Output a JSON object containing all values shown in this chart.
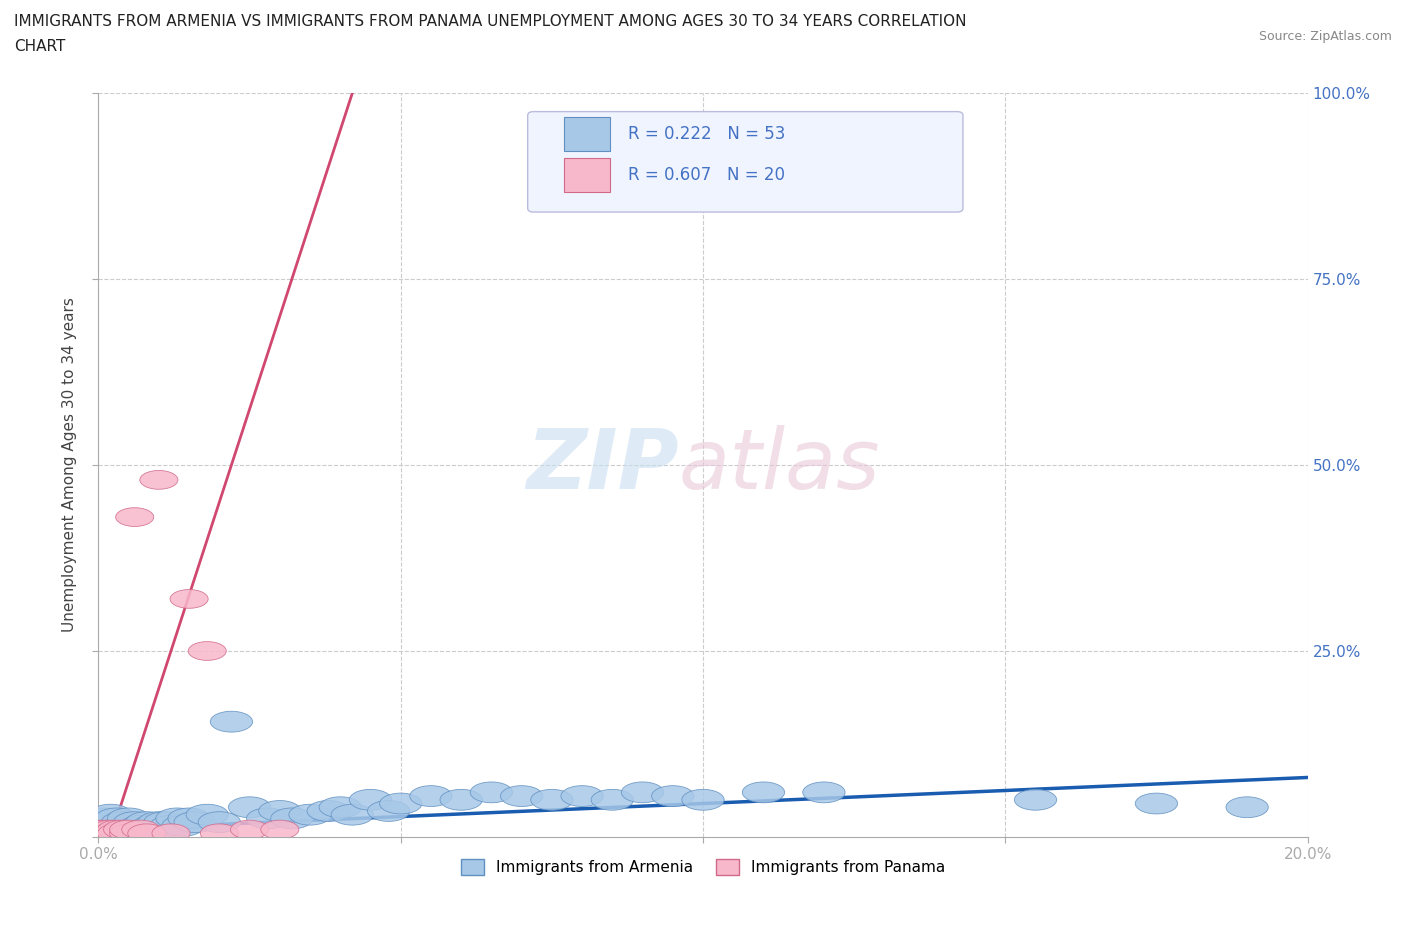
{
  "title_line1": "IMMIGRANTS FROM ARMENIA VS IMMIGRANTS FROM PANAMA UNEMPLOYMENT AMONG AGES 30 TO 34 YEARS CORRELATION",
  "title_line2": "CHART",
  "source": "Source: ZipAtlas.com",
  "ylabel": "Unemployment Among Ages 30 to 34 years",
  "xlim": [
    0.0,
    0.2
  ],
  "ylim": [
    0.0,
    1.0
  ],
  "armenia_color": "#a8c8e8",
  "armenia_edge_color": "#6090c0",
  "panama_color": "#f8b8cc",
  "panama_edge_color": "#d06888",
  "armenia_line_color": "#1a5cb0",
  "panama_line_color": "#d04870",
  "armenia_R": 0.222,
  "armenia_N": 53,
  "panama_R": 0.607,
  "panama_N": 20,
  "arm_x": [
    0.0,
    0.001,
    0.001,
    0.002,
    0.002,
    0.003,
    0.003,
    0.004,
    0.004,
    0.005,
    0.005,
    0.005,
    0.006,
    0.006,
    0.007,
    0.008,
    0.009,
    0.01,
    0.011,
    0.012,
    0.013,
    0.014,
    0.015,
    0.016,
    0.018,
    0.02,
    0.022,
    0.025,
    0.028,
    0.03,
    0.032,
    0.035,
    0.038,
    0.04,
    0.042,
    0.045,
    0.048,
    0.05,
    0.055,
    0.06,
    0.065,
    0.07,
    0.075,
    0.08,
    0.085,
    0.09,
    0.095,
    0.1,
    0.11,
    0.12,
    0.155,
    0.175,
    0.19
  ],
  "arm_y": [
    0.02,
    0.01,
    0.025,
    0.015,
    0.03,
    0.01,
    0.025,
    0.015,
    0.02,
    0.01,
    0.015,
    0.025,
    0.01,
    0.02,
    0.015,
    0.02,
    0.015,
    0.02,
    0.02,
    0.015,
    0.025,
    0.015,
    0.025,
    0.02,
    0.03,
    0.02,
    0.155,
    0.04,
    0.025,
    0.035,
    0.025,
    0.03,
    0.035,
    0.04,
    0.03,
    0.05,
    0.035,
    0.045,
    0.055,
    0.05,
    0.06,
    0.055,
    0.05,
    0.055,
    0.05,
    0.06,
    0.055,
    0.05,
    0.06,
    0.06,
    0.05,
    0.045,
    0.04
  ],
  "pan_x": [
    0.0,
    0.001,
    0.001,
    0.002,
    0.002,
    0.003,
    0.003,
    0.004,
    0.005,
    0.005,
    0.006,
    0.007,
    0.008,
    0.01,
    0.012,
    0.015,
    0.018,
    0.02,
    0.025,
    0.03
  ],
  "pan_y": [
    0.01,
    0.01,
    0.005,
    0.01,
    0.005,
    0.01,
    0.005,
    0.01,
    0.005,
    0.01,
    0.43,
    0.01,
    0.005,
    0.48,
    0.005,
    0.32,
    0.25,
    0.005,
    0.01,
    0.01
  ]
}
